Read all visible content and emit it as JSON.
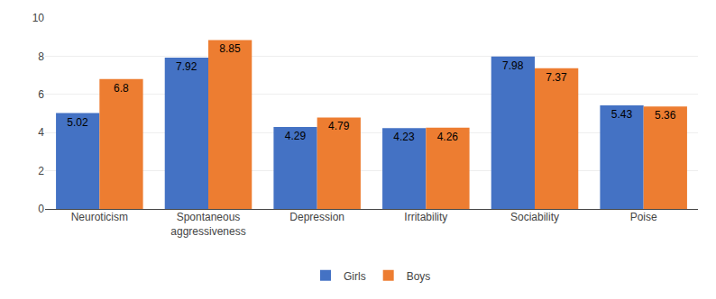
{
  "chart_data": {
    "type": "bar",
    "categories": [
      "Neuroticism",
      "Spontaneous\naggressiveness",
      "Depression",
      "Irritability",
      "Sociability",
      "Poise"
    ],
    "series": [
      {
        "name": "Girls",
        "color": "#4472C4",
        "values": [
          5.02,
          7.92,
          4.29,
          4.23,
          7.98,
          5.43
        ]
      },
      {
        "name": "Boys",
        "color": "#ED7D31",
        "values": [
          6.8,
          8.85,
          4.79,
          4.26,
          7.37,
          5.36
        ]
      }
    ],
    "ylim": [
      0,
      10
    ],
    "yticks": [
      0,
      2,
      4,
      6,
      8,
      10
    ],
    "grid": true,
    "legend": "bottom",
    "data_labels": true
  }
}
